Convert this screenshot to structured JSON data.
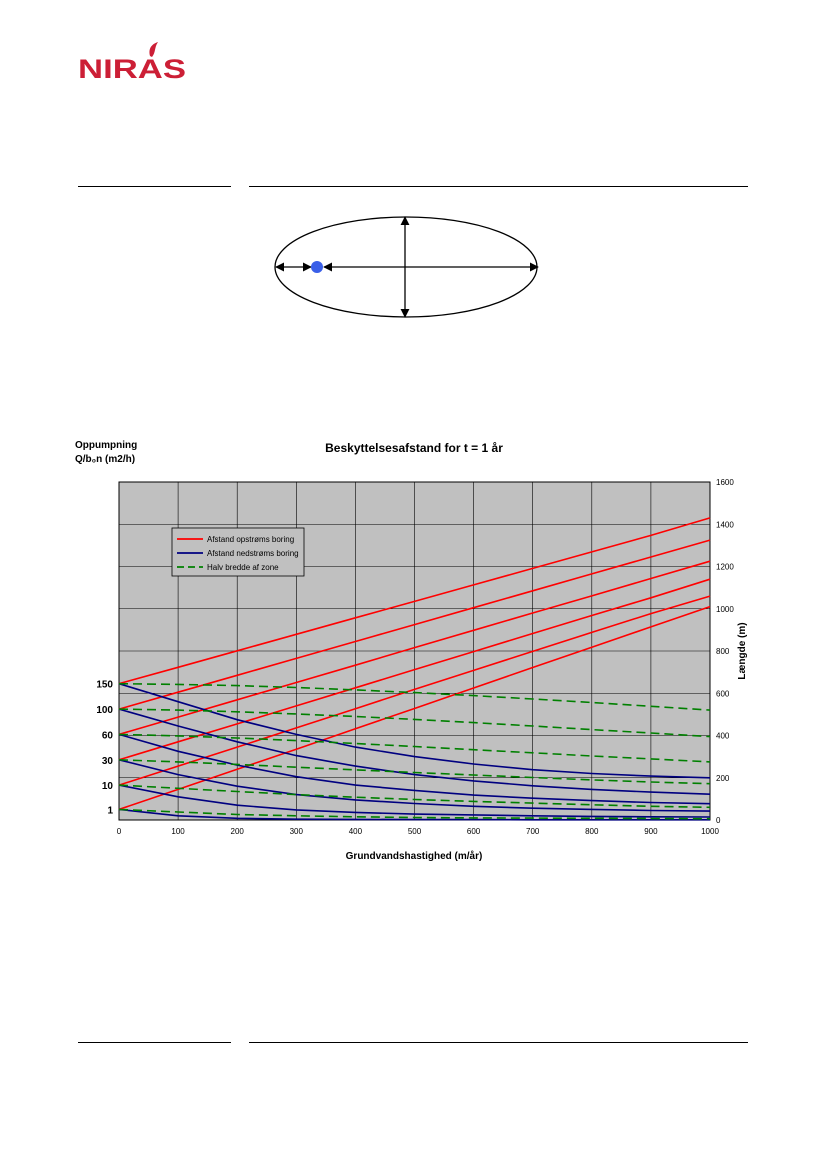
{
  "header": {
    "logo_text": "NIRAS",
    "brand_color": "#cc1f36"
  },
  "diagram": {
    "shape": "ellipse",
    "well_marker_color": "#3a5fe8"
  },
  "chart_data": {
    "type": "line",
    "title": "Beskyttelsesafstand for t = 1 år",
    "xlabel": "Grundvandshastighed (m/år)",
    "left_axis_label_line1": "Oppumpning",
    "left_axis_label_line2": "Q/b₀n (m2/h)",
    "ylabel_right": "Længde (m)",
    "xlim": [
      0,
      1000
    ],
    "ylim": [
      0,
      1600
    ],
    "x_ticks": [
      "0",
      "100",
      "200",
      "300",
      "400",
      "500",
      "600",
      "700",
      "800",
      "900",
      "1000"
    ],
    "y_ticks": [
      "0",
      "200",
      "400",
      "600",
      "800",
      "1000",
      "1200",
      "1400",
      "1600"
    ],
    "x_tick_values": [
      0,
      100,
      200,
      300,
      400,
      500,
      600,
      700,
      800,
      900,
      1000
    ],
    "y_tick_values": [
      0,
      200,
      400,
      600,
      800,
      1000,
      1200,
      1400,
      1600
    ],
    "grid": true,
    "plot_background": "#c0c0c0",
    "legend_position": "upper-left",
    "legend": [
      {
        "label": "Afstand opstrøms boring",
        "color": "#ff0000",
        "dash": "solid"
      },
      {
        "label": "Afstand nedstrøms boring",
        "color": "#000080",
        "dash": "solid"
      },
      {
        "label": "Halv bredde af zone",
        "color": "#008000",
        "dash": "dashed"
      }
    ],
    "pumping_levels": [
      {
        "label": "1",
        "y": 50
      },
      {
        "label": "10",
        "y": 165
      },
      {
        "label": "30",
        "y": 285
      },
      {
        "label": "60",
        "y": 405
      },
      {
        "label": "100",
        "y": 525
      },
      {
        "label": "150",
        "y": 645
      }
    ],
    "x": [
      0,
      100,
      200,
      300,
      400,
      500,
      600,
      700,
      800,
      900,
      1000
    ],
    "series": [
      {
        "group": "opstroms",
        "color": "#ff0000",
        "dash": "solid",
        "values": [
          50,
          145,
          240,
          335,
          432,
          528,
          625,
          722,
          818,
          914,
          1010
        ]
      },
      {
        "group": "opstroms",
        "color": "#ff0000",
        "dash": "solid",
        "values": [
          165,
          255,
          345,
          436,
          527,
          618,
          708,
          798,
          888,
          977,
          1060
        ]
      },
      {
        "group": "opstroms",
        "color": "#ff0000",
        "dash": "solid",
        "values": [
          285,
          370,
          455,
          540,
          626,
          712,
          797,
          883,
          968,
          1052,
          1140
        ]
      },
      {
        "group": "opstroms",
        "color": "#ff0000",
        "dash": "solid",
        "values": [
          405,
          487,
          569,
          651,
          733,
          816,
          898,
          980,
          1061,
          1143,
          1225
        ]
      },
      {
        "group": "opstroms",
        "color": "#ff0000",
        "dash": "solid",
        "values": [
          525,
          605,
          685,
          765,
          845,
          925,
          1005,
          1085,
          1165,
          1245,
          1325
        ]
      },
      {
        "group": "opstroms",
        "color": "#ff0000",
        "dash": "solid",
        "values": [
          645,
          723,
          801,
          879,
          957,
          1035,
          1113,
          1191,
          1269,
          1347,
          1430
        ]
      },
      {
        "group": "nedstroms",
        "color": "#000080",
        "dash": "solid",
        "values": [
          50,
          20,
          8,
          4,
          3,
          2,
          2,
          1,
          1,
          1,
          1
        ]
      },
      {
        "group": "nedstroms",
        "color": "#000080",
        "dash": "solid",
        "values": [
          165,
          110,
          70,
          48,
          36,
          28,
          24,
          20,
          17,
          15,
          14
        ]
      },
      {
        "group": "nedstroms",
        "color": "#000080",
        "dash": "solid",
        "values": [
          285,
          215,
          160,
          120,
          95,
          78,
          65,
          56,
          50,
          45,
          42
        ]
      },
      {
        "group": "nedstroms",
        "color": "#000080",
        "dash": "solid",
        "values": [
          405,
          325,
          260,
          205,
          165,
          140,
          118,
          103,
          92,
          83,
          77
        ]
      },
      {
        "group": "nedstroms",
        "color": "#000080",
        "dash": "solid",
        "values": [
          525,
          445,
          370,
          305,
          255,
          215,
          185,
          162,
          145,
          132,
          122
        ]
      },
      {
        "group": "nedstroms",
        "color": "#000080",
        "dash": "solid",
        "values": [
          645,
          560,
          475,
          405,
          345,
          300,
          265,
          238,
          220,
          208,
          200
        ]
      },
      {
        "group": "halv_bredde",
        "color": "#008000",
        "dash": "dashed",
        "values": [
          50,
          38,
          26,
          20,
          15,
          12,
          10,
          9,
          8,
          7,
          6
        ]
      },
      {
        "group": "halv_bredde",
        "color": "#008000",
        "dash": "dashed",
        "values": [
          165,
          150,
          135,
          120,
          108,
          97,
          88,
          80,
          72,
          65,
          60
        ]
      },
      {
        "group": "halv_bredde",
        "color": "#008000",
        "dash": "dashed",
        "values": [
          285,
          275,
          263,
          250,
          237,
          225,
          213,
          201,
          190,
          180,
          172
        ]
      },
      {
        "group": "halv_bredde",
        "color": "#008000",
        "dash": "dashed",
        "values": [
          405,
          398,
          388,
          376,
          362,
          348,
          333,
          318,
          303,
          289,
          275
        ]
      },
      {
        "group": "halv_bredde",
        "color": "#008000",
        "dash": "dashed",
        "values": [
          525,
          520,
          512,
          502,
          490,
          476,
          461,
          445,
          428,
          412,
          395
        ]
      },
      {
        "group": "halv_bredde",
        "color": "#008000",
        "dash": "dashed",
        "values": [
          645,
          642,
          636,
          627,
          616,
          603,
          589,
          573,
          556,
          538,
          520
        ]
      }
    ]
  }
}
